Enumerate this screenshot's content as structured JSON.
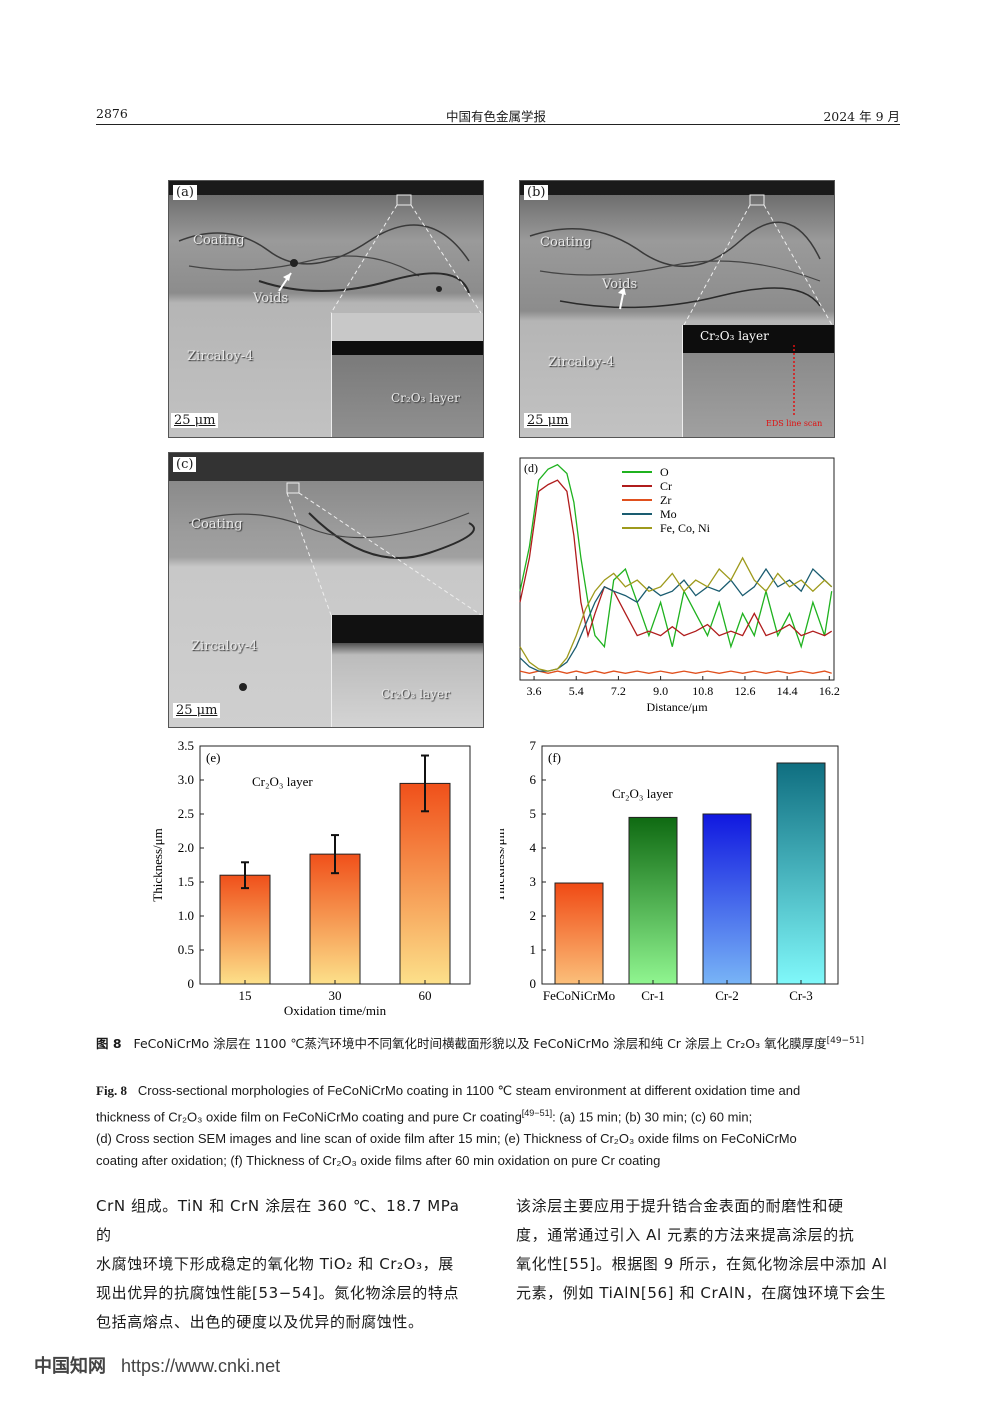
{
  "header": {
    "page_number": "2876",
    "journal": "中国有色金属学报",
    "date": "2024 年 9 月"
  },
  "panels": {
    "a": {
      "label": "(a)",
      "coating": "Coating",
      "voids": "Voids",
      "substrate": "Zircaloy-4",
      "scale": "25 μm",
      "inset_label": "Cr₂O₃ layer"
    },
    "b": {
      "label": "(b)",
      "coating": "Coating",
      "voids": "Voids",
      "substrate": "Zircaloy-4",
      "scale": "25 μm",
      "inset_label": "Cr₂O₃ layer",
      "line_scan": "EDS line scan"
    },
    "c": {
      "label": "(c)",
      "coating": "Coating",
      "substrate": "Zircaloy-4",
      "scale": "25 μm",
      "inset_label": "Cr₂O₃ layer"
    }
  },
  "chart_data": [
    {
      "type": "line",
      "panel": "(d)",
      "xlabel": "Distance/μm",
      "x_ticks": [
        "3.6",
        "5.4",
        "7.2",
        "9.0",
        "10.8",
        "12.6",
        "14.4",
        "16.2"
      ],
      "xlim": [
        3.0,
        16.4
      ],
      "series": [
        {
          "name": "O",
          "color": "#1fb21f",
          "x": [
            3.0,
            3.4,
            3.8,
            4.2,
            4.6,
            5.0,
            5.3,
            5.6,
            5.9,
            6.2,
            6.6,
            7.0,
            7.5,
            8.0,
            8.5,
            9.0,
            9.5,
            10.0,
            10.5,
            11.0,
            11.5,
            12.0,
            12.5,
            13.0,
            13.5,
            14.0,
            14.5,
            15.0,
            15.5,
            16.0,
            16.3
          ],
          "y": [
            0.4,
            0.6,
            0.9,
            0.95,
            0.97,
            0.93,
            0.8,
            0.55,
            0.35,
            0.2,
            0.15,
            0.45,
            0.5,
            0.35,
            0.2,
            0.35,
            0.15,
            0.4,
            0.3,
            0.2,
            0.35,
            0.15,
            0.3,
            0.2,
            0.4,
            0.2,
            0.3,
            0.15,
            0.35,
            0.2,
            0.4
          ]
        },
        {
          "name": "Cr",
          "color": "#b01c1c",
          "x": [
            3.0,
            3.4,
            3.8,
            4.2,
            4.6,
            5.0,
            5.3,
            5.6,
            5.9,
            6.2,
            6.6,
            7.0,
            7.5,
            8.0,
            8.5,
            9.0,
            9.5,
            10.0,
            10.5,
            11.0,
            11.5,
            12.0,
            12.5,
            13.0,
            13.5,
            14.0,
            14.5,
            15.0,
            15.5,
            16.0,
            16.3
          ],
          "y": [
            0.35,
            0.55,
            0.85,
            0.88,
            0.9,
            0.85,
            0.65,
            0.35,
            0.2,
            0.3,
            0.42,
            0.4,
            0.3,
            0.2,
            0.22,
            0.2,
            0.24,
            0.2,
            0.22,
            0.25,
            0.2,
            0.22,
            0.2,
            0.3,
            0.2,
            0.22,
            0.25,
            0.2,
            0.22,
            0.2,
            0.22
          ]
        },
        {
          "name": "Zr",
          "color": "#e0501e",
          "x": [
            3.0,
            3.4,
            3.8,
            4.2,
            4.6,
            5.0,
            5.4,
            5.8,
            6.2,
            6.6,
            7.0,
            7.5,
            8.0,
            8.5,
            9.0,
            9.5,
            10.0,
            10.5,
            11.0,
            11.5,
            12.0,
            12.5,
            13.0,
            13.5,
            14.0,
            14.5,
            15.0,
            15.5,
            16.0,
            16.3
          ],
          "y": [
            0.04,
            0.03,
            0.04,
            0.03,
            0.04,
            0.03,
            0.04,
            0.03,
            0.04,
            0.03,
            0.04,
            0.03,
            0.04,
            0.03,
            0.04,
            0.03,
            0.04,
            0.03,
            0.04,
            0.03,
            0.04,
            0.03,
            0.04,
            0.03,
            0.04,
            0.03,
            0.04,
            0.03,
            0.04,
            0.03
          ]
        },
        {
          "name": "Mo",
          "color": "#1a5c70",
          "x": [
            3.0,
            3.4,
            3.8,
            4.2,
            4.6,
            5.0,
            5.4,
            5.8,
            6.2,
            6.6,
            7.0,
            7.5,
            8.0,
            8.5,
            9.0,
            9.5,
            10.0,
            10.5,
            11.0,
            11.5,
            12.0,
            12.5,
            13.0,
            13.5,
            14.0,
            14.5,
            15.0,
            15.5,
            16.0,
            16.3
          ],
          "y": [
            0.1,
            0.06,
            0.04,
            0.04,
            0.05,
            0.08,
            0.15,
            0.25,
            0.35,
            0.42,
            0.4,
            0.38,
            0.35,
            0.42,
            0.38,
            0.4,
            0.45,
            0.38,
            0.42,
            0.4,
            0.45,
            0.38,
            0.42,
            0.5,
            0.42,
            0.45,
            0.4,
            0.5,
            0.45,
            0.42
          ]
        },
        {
          "name": "Fe, Co, Ni",
          "color": "#9e9a1c",
          "x": [
            3.0,
            3.4,
            3.8,
            4.2,
            4.6,
            5.0,
            5.4,
            5.8,
            6.2,
            6.6,
            7.0,
            7.5,
            8.0,
            8.5,
            9.0,
            9.5,
            10.0,
            10.5,
            11.0,
            11.5,
            12.0,
            12.5,
            13.0,
            13.5,
            14.0,
            14.5,
            15.0,
            15.5,
            16.0,
            16.3
          ],
          "y": [
            0.15,
            0.08,
            0.05,
            0.04,
            0.05,
            0.1,
            0.2,
            0.32,
            0.4,
            0.45,
            0.48,
            0.42,
            0.45,
            0.4,
            0.42,
            0.48,
            0.4,
            0.45,
            0.42,
            0.5,
            0.45,
            0.55,
            0.45,
            0.4,
            0.48,
            0.42,
            0.45,
            0.4,
            0.45,
            0.42
          ]
        }
      ]
    },
    {
      "type": "bar",
      "panel": "(e)",
      "annotation": "Cr₂O₃ layer",
      "xlabel": "Oxidation time/min",
      "ylabel": "Thickness/μm",
      "categories": [
        "15",
        "30",
        "60"
      ],
      "values": [
        1.6,
        1.91,
        2.95
      ],
      "errors": [
        0.19,
        0.28,
        0.41
      ],
      "ylim": [
        0,
        3.5
      ],
      "y_ticks": [
        "0",
        "0.5",
        "1.0",
        "1.5",
        "2.0",
        "2.5",
        "3.0",
        "3.5"
      ],
      "gradient": [
        "#f0501a",
        "#fce08a"
      ]
    },
    {
      "type": "bar",
      "panel": "(f)",
      "annotation": "Cr₂O₃ layer",
      "ylabel": "Thickness/μm",
      "categories": [
        "FeCoNiCrMo",
        "Cr-1",
        "Cr-2",
        "Cr-3"
      ],
      "values": [
        2.97,
        4.9,
        5.0,
        6.5
      ],
      "ylim": [
        0,
        7
      ],
      "y_ticks": [
        "0",
        "1",
        "2",
        "3",
        "4",
        "5",
        "6",
        "7"
      ],
      "gradients": [
        [
          "#f04a14",
          "#fbbf7a"
        ],
        [
          "#0f6a12",
          "#90f590"
        ],
        [
          "#1018e0",
          "#78b4f6"
        ],
        [
          "#0f6e80",
          "#80f8fa"
        ]
      ]
    }
  ],
  "caption_cn": {
    "fig": "图 8",
    "text": "FeCoNiCrMo 涂层在 1100 ℃蒸汽环境中不同氧化时间横截面形貌以及 FeCoNiCrMo 涂层和纯 Cr 涂层上 Cr₂O₃ 氧化膜厚度",
    "ref": "[49−51]"
  },
  "caption_en": {
    "fig": "Fig. 8",
    "line1": "Cross-sectional morphologies of FeCoNiCrMo coating in 1100 ℃ steam environment at different oxidation time and",
    "line2a": "thickness of Cr₂O₃ oxide film on FeCoNiCrMo coating and pure Cr coating",
    "ref": "[49−51]",
    "line2b": ": (a) 15 min; (b) 30 min; (c) 60 min;",
    "line3": "(d) Cross section SEM images and line scan of oxide film after 15 min; (e) Thickness of Cr₂O₃ oxide films on FeCoNiCrMo",
    "line4": "coating after oxidation; (f) Thickness of Cr₂O₃ oxide films after 60 min oxidation on pure Cr coating"
  },
  "body": {
    "left": [
      "CrN 组成。TiN 和 CrN 涂层在 360 ℃、18.7 MPa 的",
      "水腐蚀环境下形成稳定的氧化物 TiO₂ 和 Cr₂O₃，展",
      "现出优异的抗腐蚀性能[53−54]。氮化物涂层的特点",
      "包括高熔点、出色的硬度以及优异的耐腐蚀性。"
    ],
    "right": [
      "该涂层主要应用于提升锆合金表面的耐磨性和硬",
      "度，通常通过引入 Al 元素的方法来提高涂层的抗",
      "氧化性[55]。根据图 9 所示，在氮化物涂层中添加 Al",
      "元素，例如 TiAlN[56] 和 CrAlN，在腐蚀环境下会生"
    ]
  },
  "footer": {
    "brand": "中国知网",
    "url": "https://www.cnki.net"
  }
}
